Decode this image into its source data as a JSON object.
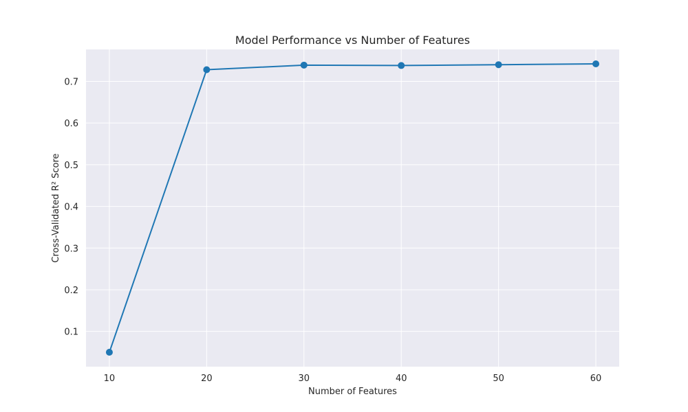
{
  "chart_data": {
    "type": "line",
    "title": "Model Performance vs Number of Features",
    "xlabel": "Number of Features",
    "ylabel": "Cross-Validated R² Score",
    "x": [
      10,
      20,
      30,
      40,
      50,
      60
    ],
    "series": [
      {
        "values": [
          0.05,
          0.728,
          0.739,
          0.738,
          0.74,
          0.742
        ],
        "color": "#1f77b4",
        "marker": "circle"
      }
    ],
    "xticks": [
      10,
      20,
      30,
      40,
      50,
      60
    ],
    "xtick_labels": [
      "10",
      "20",
      "30",
      "40",
      "50",
      "60"
    ],
    "yticks": [
      0.1,
      0.2,
      0.3,
      0.4,
      0.5,
      0.6,
      0.7
    ],
    "ytick_labels": [
      "0.1",
      "0.2",
      "0.3",
      "0.4",
      "0.5",
      "0.6",
      "0.7"
    ],
    "xlim": [
      7.6,
      62.4
    ],
    "ylim": [
      0.0154,
      0.7766
    ],
    "grid": true,
    "background_color": "#eaeaf2",
    "grid_color": "#ffffff"
  }
}
